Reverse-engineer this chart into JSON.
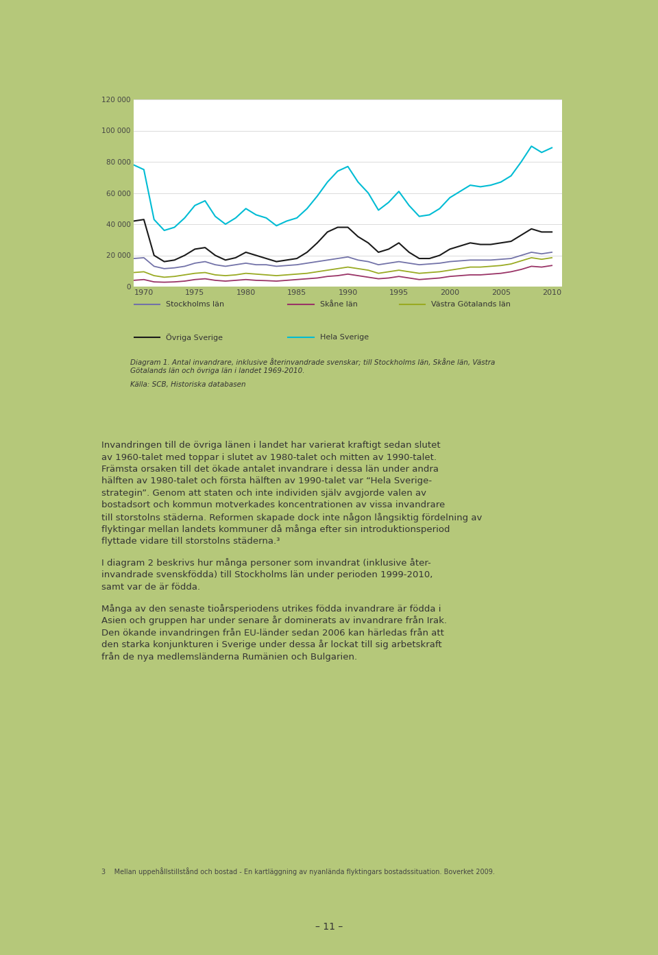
{
  "years": [
    1969,
    1970,
    1971,
    1972,
    1973,
    1974,
    1975,
    1976,
    1977,
    1978,
    1979,
    1980,
    1981,
    1982,
    1983,
    1984,
    1985,
    1986,
    1987,
    1988,
    1989,
    1990,
    1991,
    1992,
    1993,
    1994,
    1995,
    1996,
    1997,
    1998,
    1999,
    2000,
    2001,
    2002,
    2003,
    2004,
    2005,
    2006,
    2007,
    2008,
    2009,
    2010
  ],
  "stockholms_lan": [
    18000,
    18500,
    13000,
    11500,
    12000,
    13000,
    15000,
    16000,
    14000,
    13000,
    14000,
    15000,
    14000,
    14000,
    13000,
    13500,
    14000,
    15000,
    16000,
    17000,
    18000,
    19000,
    17000,
    16000,
    14000,
    15000,
    16000,
    15000,
    14000,
    14500,
    15000,
    16000,
    16500,
    17000,
    17000,
    17000,
    17500,
    18000,
    20000,
    22000,
    21000,
    22000
  ],
  "skane_lan": [
    4000,
    4500,
    3000,
    2800,
    3000,
    3500,
    4500,
    5000,
    4000,
    3500,
    4000,
    4500,
    4000,
    3800,
    3500,
    4000,
    4500,
    5000,
    5500,
    6500,
    7000,
    8000,
    7000,
    6000,
    5000,
    5500,
    6500,
    5500,
    4500,
    5000,
    5500,
    6500,
    7000,
    7500,
    7500,
    8000,
    8500,
    9500,
    11000,
    13000,
    12500,
    13500
  ],
  "vastra_gotalands_lan": [
    9000,
    9500,
    7000,
    6000,
    6500,
    7500,
    8500,
    9000,
    7500,
    7000,
    7500,
    8500,
    8000,
    7500,
    7000,
    7500,
    8000,
    8500,
    9500,
    10500,
    11500,
    12500,
    11500,
    10500,
    8500,
    9500,
    10500,
    9500,
    8500,
    9000,
    9500,
    10500,
    11500,
    12500,
    12500,
    13000,
    13500,
    14500,
    16500,
    18500,
    17500,
    18500
  ],
  "ovriga_sverige": [
    42000,
    43000,
    20000,
    16000,
    17000,
    20000,
    24000,
    25000,
    20000,
    17000,
    18500,
    22000,
    20000,
    18000,
    16000,
    17000,
    18000,
    22000,
    28000,
    35000,
    38000,
    38000,
    32000,
    28000,
    22000,
    24000,
    28000,
    22000,
    18000,
    18000,
    20000,
    24000,
    26000,
    28000,
    27000,
    27000,
    28000,
    29000,
    33000,
    37000,
    35000,
    35000
  ],
  "hela_sverige": [
    78000,
    75000,
    43000,
    36000,
    38000,
    44000,
    52000,
    55000,
    45000,
    40000,
    44000,
    50000,
    46000,
    44000,
    39000,
    42000,
    44000,
    50000,
    58000,
    67000,
    74000,
    77000,
    67000,
    60000,
    49000,
    54000,
    61000,
    52000,
    45000,
    46000,
    50000,
    57000,
    61000,
    65000,
    64000,
    65000,
    67000,
    71000,
    80000,
    90000,
    86000,
    89000
  ],
  "colors": {
    "stockholms_lan": "#7272a8",
    "skane_lan": "#993366",
    "vastra_gotalands_lan": "#99aa22",
    "ovriga_sverige": "#1a1a1a",
    "hela_sverige": "#00bcd4"
  },
  "legend_labels": {
    "stockholms_lan": "Stockholms län",
    "skane_lan": "Skåne län",
    "vastra_gotalands_lan": "Västra Götalands län",
    "ovriga_sverige": "Övriga Sverige",
    "hela_sverige": "Hela Sverige"
  },
  "ylim": [
    0,
    120000
  ],
  "yticks": [
    0,
    20000,
    40000,
    60000,
    80000,
    100000,
    120000
  ],
  "ytick_labels": [
    "0",
    "20 000",
    "40 000",
    "60 000",
    "80 000",
    "100 000",
    "120 000"
  ],
  "xticks": [
    1970,
    1975,
    1980,
    1985,
    1990,
    1995,
    2000,
    2005,
    2010
  ],
  "page_background": "#b5c87a",
  "chart_background": "#ffffff",
  "white_box_background": "#ffffff",
  "caption_line1": "Diagram 1. Antal invandrare, inklusive återinvandrade svenskar; till Stockholms län, Skåne län, Västra",
  "caption_line2": "Götalands län och övriga län i landet 1969-2010.",
  "caption_source": "Källa: SCB, Historiska databasen",
  "page_number": "– 11 –",
  "footnote_text": "Mellan uppehållstillstånd och bostad - En kartläggning av nyanlända flyktingars bostadssituation. Boverket 2009."
}
